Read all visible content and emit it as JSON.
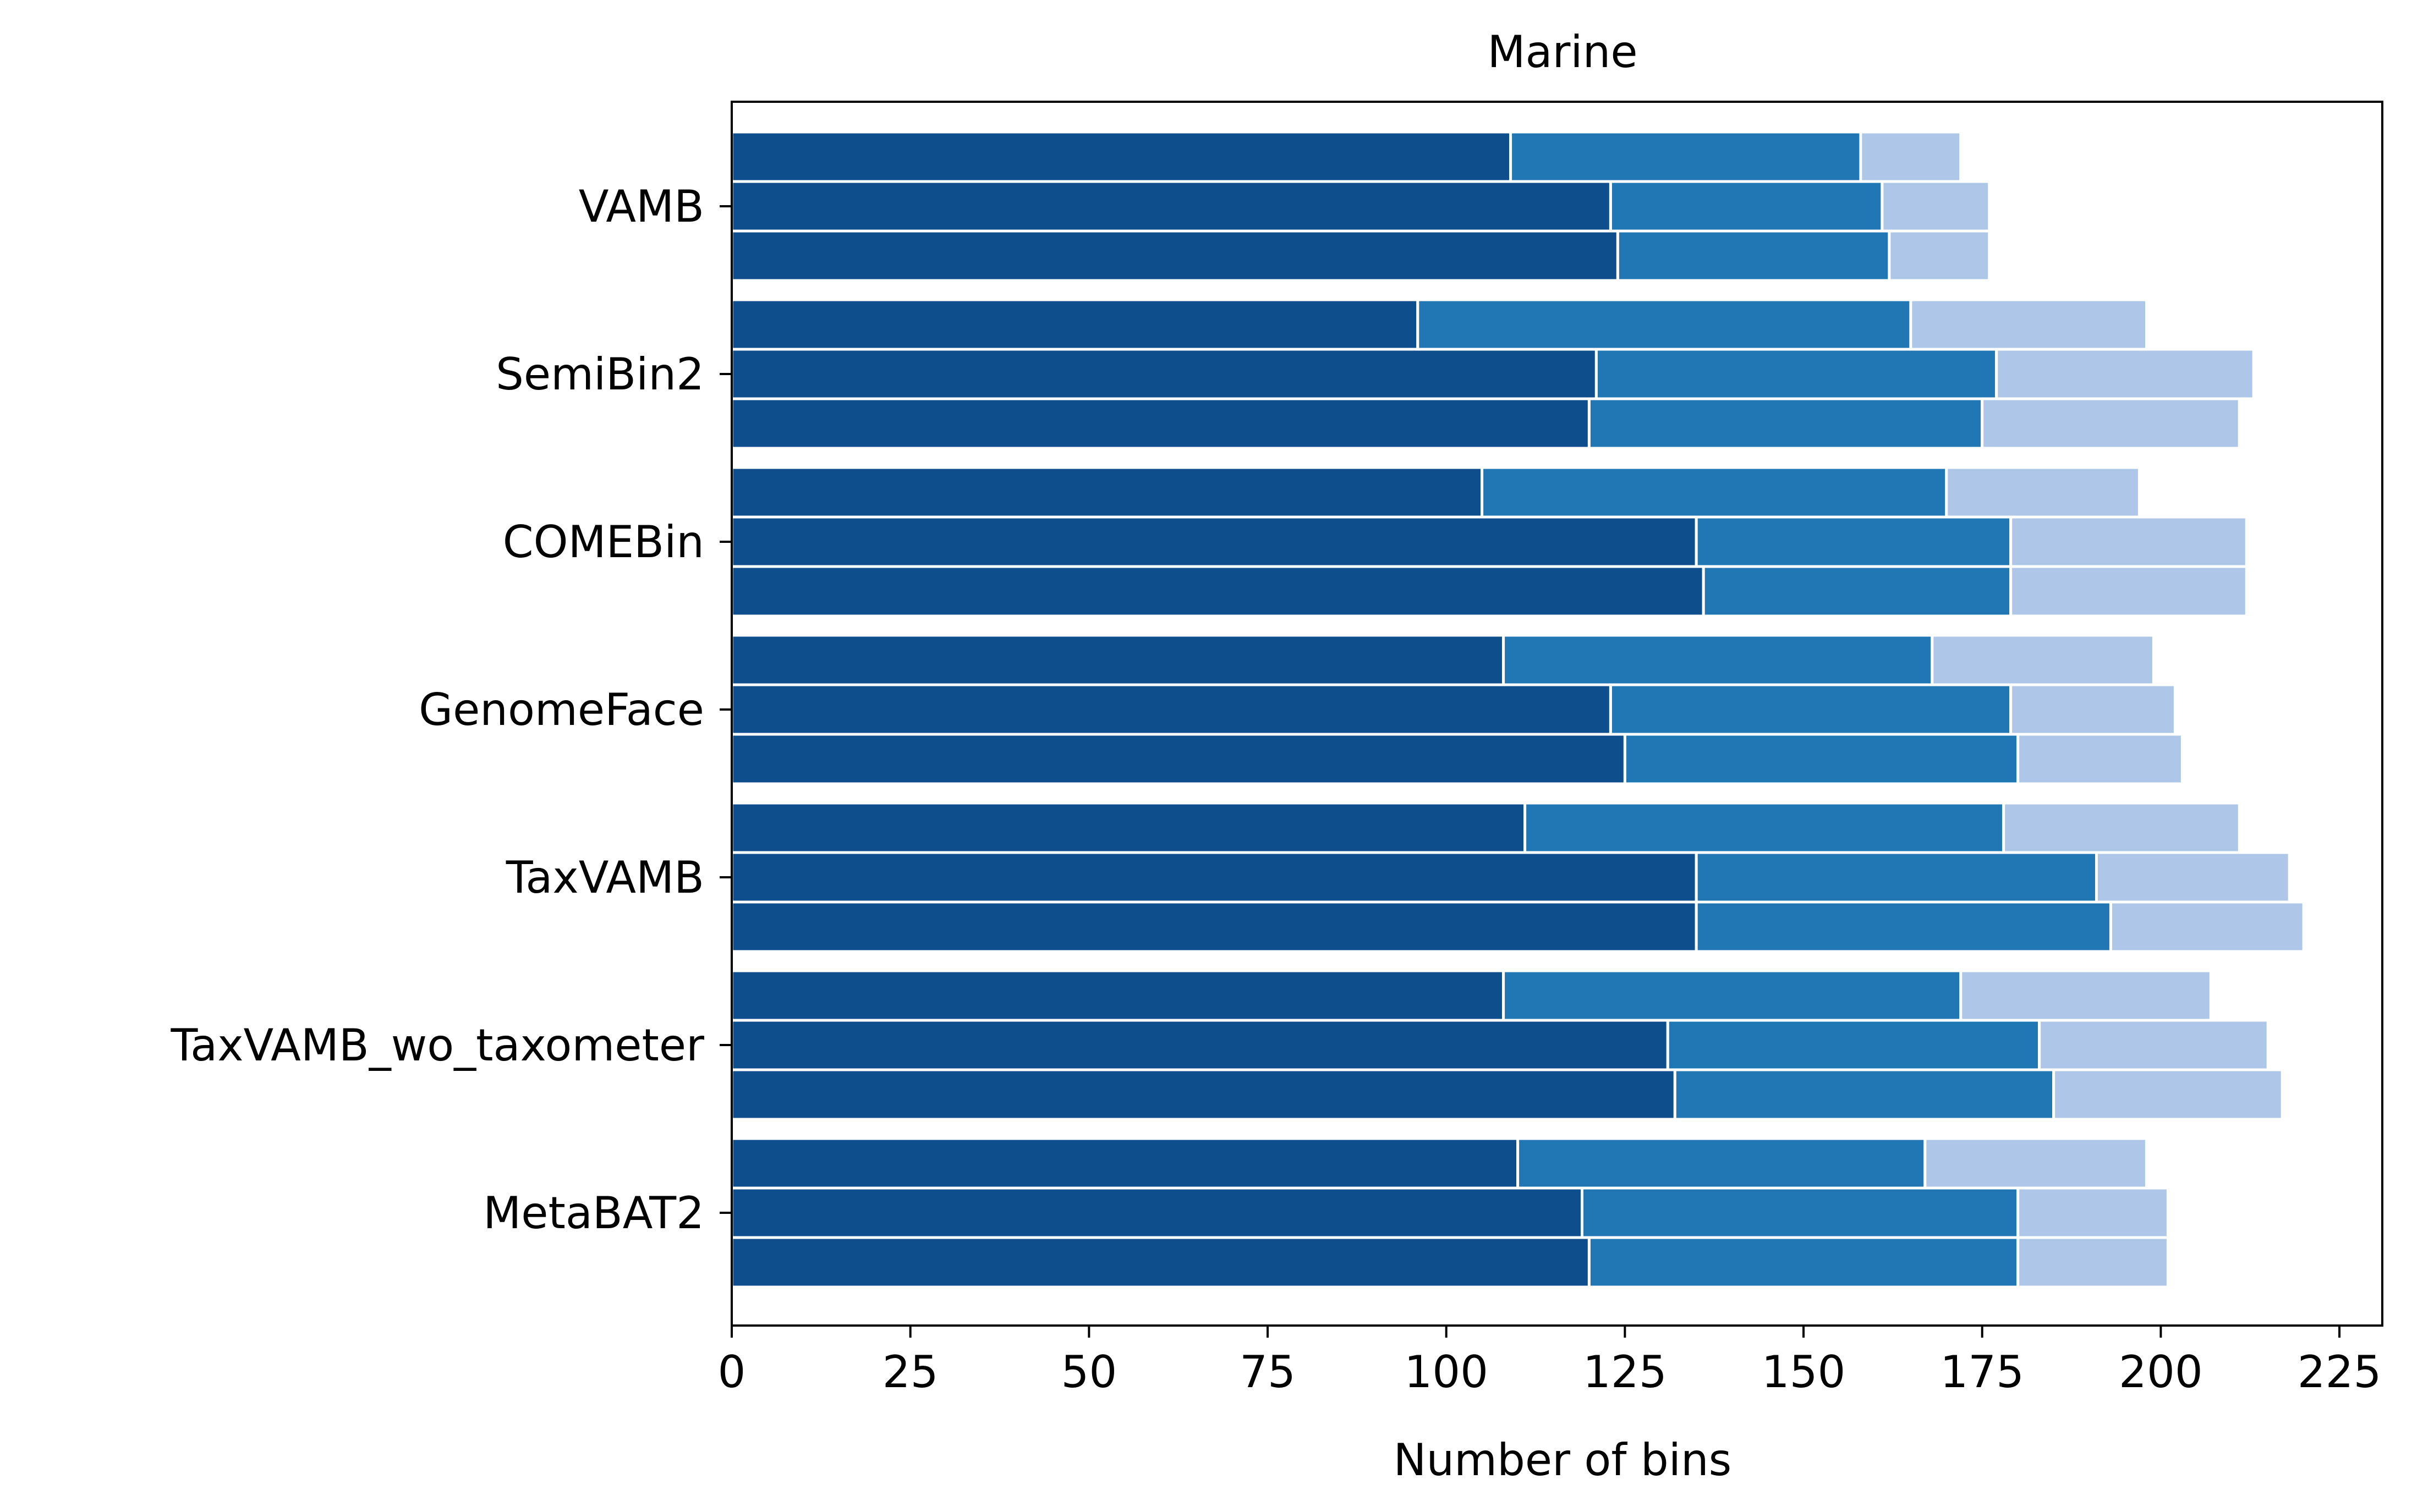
{
  "chart_data": {
    "type": "bar",
    "orientation": "horizontal",
    "stacked": true,
    "title": "Marine",
    "xlabel": "Number of bins",
    "ylabel": "",
    "xlim": [
      0,
      231
    ],
    "xticks": [
      0,
      25,
      50,
      75,
      100,
      125,
      150,
      175,
      200,
      225
    ],
    "categories": [
      "VAMB",
      "SemiBin2",
      "COMEBin",
      "GenomeFace",
      "TaxVAMB",
      "TaxVAMB_wo_taxometer",
      "MetaBAT2"
    ],
    "bars_per_category": 3,
    "segment_colors": [
      "#0f4e8c",
      "#2077b4",
      "#aec7e8"
    ],
    "segment_edge_color": "#ffffff",
    "cumulative_values": [
      [
        [
          109,
          158,
          172
        ],
        [
          123,
          161,
          176
        ],
        [
          124,
          162,
          176
        ]
      ],
      [
        [
          96,
          165,
          198
        ],
        [
          121,
          177,
          213
        ],
        [
          120,
          175,
          211
        ]
      ],
      [
        [
          105,
          170,
          197
        ],
        [
          135,
          179,
          212
        ],
        [
          136,
          179,
          212
        ]
      ],
      [
        [
          108,
          168,
          199
        ],
        [
          123,
          179,
          202
        ],
        [
          125,
          180,
          203
        ]
      ],
      [
        [
          111,
          178,
          211
        ],
        [
          135,
          191,
          218
        ],
        [
          135,
          193,
          220
        ]
      ],
      [
        [
          108,
          172,
          207
        ],
        [
          131,
          183,
          215
        ],
        [
          132,
          185,
          217
        ]
      ],
      [
        [
          110,
          167,
          198
        ],
        [
          119,
          180,
          201
        ],
        [
          120,
          180,
          201
        ]
      ]
    ]
  }
}
